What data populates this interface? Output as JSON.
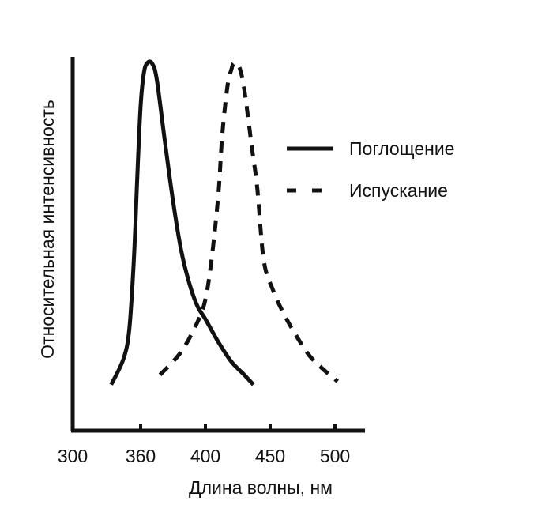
{
  "chart_data": {
    "type": "line",
    "xlabel": "Длина волны, нм",
    "ylabel": "Относительная интенсивность",
    "x_ticks": [
      300,
      360,
      400,
      450,
      500
    ],
    "x_tick_labels": [
      "300",
      "360",
      "400",
      "450",
      "500"
    ],
    "y_ticks_shown": false,
    "ylim": [
      0,
      1
    ],
    "grid": false,
    "legend_position": "top-right",
    "series": [
      {
        "name": "Поглощение",
        "style": "solid",
        "color": "#111111",
        "points": [
          [
            334,
            0.02
          ],
          [
            345,
            0.1
          ],
          [
            350,
            0.19
          ],
          [
            354,
            0.4
          ],
          [
            357,
            0.65
          ],
          [
            360,
            0.87
          ],
          [
            362,
            0.97
          ],
          [
            364,
            1.0
          ],
          [
            367,
            1.0
          ],
          [
            370,
            0.95
          ],
          [
            375,
            0.76
          ],
          [
            380,
            0.58
          ],
          [
            385,
            0.43
          ],
          [
            390,
            0.33
          ],
          [
            395,
            0.26
          ],
          [
            400,
            0.22
          ],
          [
            410,
            0.15
          ],
          [
            420,
            0.09
          ],
          [
            430,
            0.05
          ],
          [
            437,
            0.02
          ]
        ]
      },
      {
        "name": "Испускание",
        "style": "dashed",
        "color": "#111111",
        "points": [
          [
            372,
            0.05
          ],
          [
            385,
            0.12
          ],
          [
            395,
            0.21
          ],
          [
            400,
            0.28
          ],
          [
            405,
            0.41
          ],
          [
            410,
            0.6
          ],
          [
            413,
            0.78
          ],
          [
            417,
            0.93
          ],
          [
            420,
            0.98
          ],
          [
            422,
            1.0
          ],
          [
            426,
            0.99
          ],
          [
            430,
            0.92
          ],
          [
            436,
            0.74
          ],
          [
            440,
            0.62
          ],
          [
            445,
            0.4
          ],
          [
            452,
            0.31
          ],
          [
            460,
            0.24
          ],
          [
            470,
            0.17
          ],
          [
            480,
            0.11
          ],
          [
            490,
            0.07
          ],
          [
            502,
            0.03
          ]
        ]
      }
    ]
  }
}
